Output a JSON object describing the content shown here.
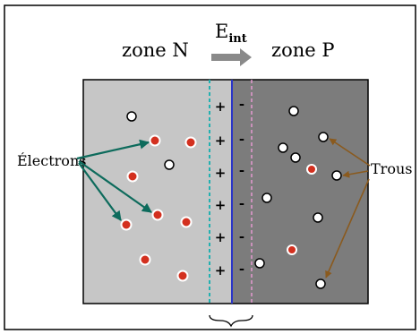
{
  "labels": {
    "zone_n": "zone N",
    "zone_p": "zone P",
    "field": "E",
    "field_sub": "int",
    "electrons": "Électrons",
    "trous": "Trous"
  },
  "charges": {
    "plus": "+",
    "minus": "-"
  },
  "colors": {
    "zone_n": "#c6c6c6",
    "zone_p": "#7c7c7c",
    "electron": "#d3301f",
    "electron_arrow": "#0d6b5c",
    "trou_arrow": "#8a5a1e",
    "depletion_n_line": "#22b0b0",
    "junction_line": "#2a35c8",
    "depletion_p_line": "#e39ad0",
    "field_arrow": "#8a8a8a"
  }
}
